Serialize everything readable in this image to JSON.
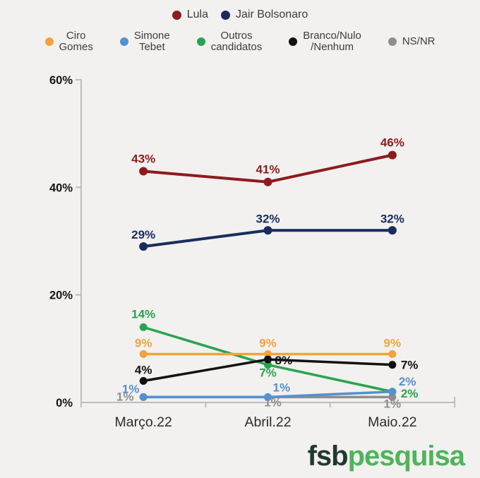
{
  "colors": {
    "background": "#f2f1ef",
    "axis": "#bdbdbd",
    "tick_label": "#151515",
    "category_label": "#2b2b2b",
    "legend_text": "#3c3c3c"
  },
  "legend": {
    "row1": [
      {
        "label": "Lula",
        "color": "#8e1b1e"
      },
      {
        "label": "Jair Bolsonaro",
        "color": "#1a2c5e"
      }
    ],
    "row2": [
      {
        "label": "Ciro\nGomes",
        "color": "#f2a33c"
      },
      {
        "label": "Simone\nTebet",
        "color": "#5590cf"
      },
      {
        "label": "Outros\ncandidatos",
        "color": "#2aa34f"
      },
      {
        "label": "Branco/Nulo\n/Nenhum",
        "color": "#121212"
      },
      {
        "label": "NS/NR",
        "color": "#8e8e8e"
      }
    ]
  },
  "chart_data": {
    "type": "line",
    "categories": [
      "Março.22",
      "Abril.22",
      "Maio.22"
    ],
    "series": [
      {
        "name": "Lula",
        "color": "#8e1b1e",
        "values": [
          43,
          41,
          46
        ]
      },
      {
        "name": "Jair Bolsonaro",
        "color": "#1a2c5e",
        "values": [
          29,
          32,
          32
        ]
      },
      {
        "name": "Ciro Gomes",
        "color": "#f2a33c",
        "values": [
          9,
          9,
          9
        ]
      },
      {
        "name": "Simone Tebet",
        "color": "#5590cf",
        "values": [
          1,
          1,
          2
        ]
      },
      {
        "name": "Outros candidatos",
        "color": "#2aa34f",
        "values": [
          14,
          7,
          2
        ]
      },
      {
        "name": "Branco/Nulo/Nenhum",
        "color": "#121212",
        "values": [
          4,
          8,
          7
        ]
      },
      {
        "name": "NS/NR",
        "color": "#8e8e8e",
        "values": [
          1,
          1,
          1
        ]
      }
    ],
    "title": "",
    "xlabel": "",
    "ylabel": "",
    "ylim": [
      0,
      60
    ],
    "yticks": [
      0,
      20,
      40,
      60
    ],
    "tick_suffix": "%",
    "value_suffix": "%",
    "grid": false,
    "legend_position": "top",
    "data_labels": true
  },
  "footer": {
    "logo_bold": "fsb",
    "logo_light": "pesquisa",
    "logo_bold_color": "#21392e",
    "logo_light_color": "#4fb45c"
  }
}
